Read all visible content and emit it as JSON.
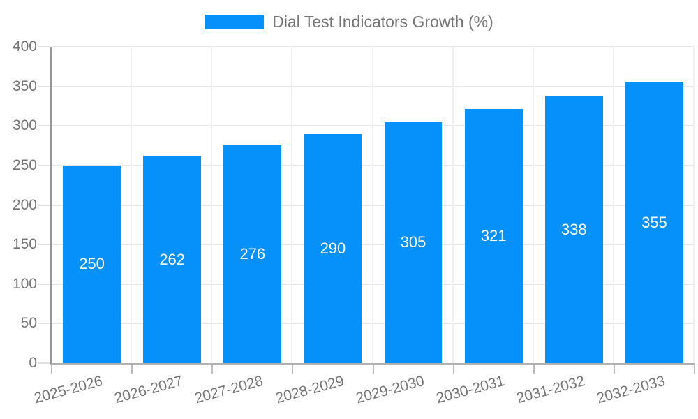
{
  "chart_data": {
    "type": "bar",
    "title": "",
    "legend": [
      "Dial Test Indicators Growth (%)"
    ],
    "legend_position": "top-center",
    "categories": [
      "2025-2026",
      "2026-2027",
      "2027-2028",
      "2028-2029",
      "2029-2030",
      "2030-2031",
      "2031-2032",
      "2032-2033"
    ],
    "values": [
      250,
      262,
      276,
      290,
      305,
      321,
      338,
      355
    ],
    "xlabel": "",
    "ylabel": "",
    "ylim": [
      0,
      400
    ],
    "yticks": [
      0,
      50,
      100,
      150,
      200,
      250,
      300,
      350,
      400
    ],
    "grid": true,
    "bar_color": "#0590fa",
    "bar_label_color": "#ffffff",
    "axis_text_color": "#757575"
  }
}
